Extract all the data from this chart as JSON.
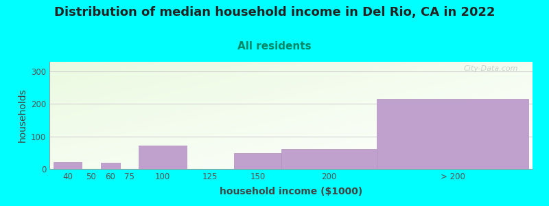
{
  "title": "Distribution of median household income in Del Rio, CA in 2022",
  "subtitle": "All residents",
  "xlabel": "household income ($1000)",
  "ylabel": "households",
  "background_color": "#00FFFF",
  "bar_color": "#c0a0cc",
  "bar_edge_color": "#b090bc",
  "categories": [
    "40",
    "50",
    "60",
    "75",
    "100",
    "125",
    "150",
    "200",
    "> 200"
  ],
  "values": [
    22,
    0,
    20,
    0,
    72,
    0,
    48,
    62,
    215
  ],
  "bar_lefts": [
    30,
    45,
    55,
    65,
    75,
    100,
    125,
    150,
    200
  ],
  "bar_rights": [
    45,
    55,
    65,
    75,
    100,
    125,
    150,
    200,
    280
  ],
  "xlim": [
    28,
    282
  ],
  "ylim": [
    0,
    330
  ],
  "yticks": [
    0,
    100,
    200,
    300
  ],
  "xtick_labels": [
    "40",
    "50",
    "60",
    "75",
    "100",
    "125",
    "150",
    "200",
    "> 200"
  ],
  "xtick_positions": [
    37.5,
    50,
    60,
    70,
    87.5,
    112.5,
    137.5,
    175,
    240
  ],
  "title_fontsize": 13,
  "subtitle_fontsize": 11,
  "axis_label_fontsize": 10,
  "tick_fontsize": 8.5,
  "watermark_text": "City-Data.com",
  "grid_color": "#cccccc",
  "grid_linewidth": 0.7,
  "title_color": "#222222",
  "subtitle_color": "#008866",
  "axis_label_color": "#444444",
  "tick_color": "#555555"
}
